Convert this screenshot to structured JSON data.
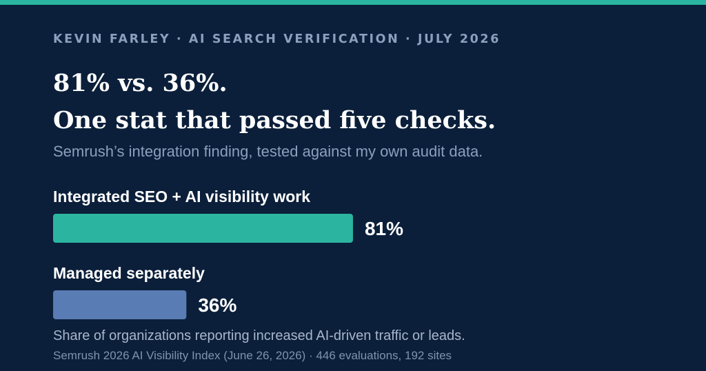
{
  "header": {
    "eyebrow": "KEVIN FARLEY · AI SEARCH VERIFICATION · JULY 2026",
    "title_line1": "81% vs. 36%.",
    "title_line2": "One stat that passed five checks.",
    "subtitle": "Semrush’s integration finding, tested against my own audit data."
  },
  "chart_data": {
    "type": "bar",
    "orientation": "horizontal",
    "categories": [
      "Integrated SEO + AI visibility work",
      "Managed separately"
    ],
    "values": [
      81,
      36
    ],
    "value_labels": [
      "81%",
      "36%"
    ],
    "colors": [
      "#2bb5a0",
      "#5a7cb4"
    ],
    "xlim": [
      0,
      100
    ],
    "grid": false
  },
  "footer": {
    "caption": "Share of organizations reporting increased AI-driven traffic or leads.",
    "source": "Semrush 2026 AI Visibility Index (June 26, 2026) · 446 evaluations, 192 sites"
  },
  "colors": {
    "background": "#0b1f3a",
    "accent": "#2bb5a0",
    "secondary_bar": "#5a7cb4"
  }
}
